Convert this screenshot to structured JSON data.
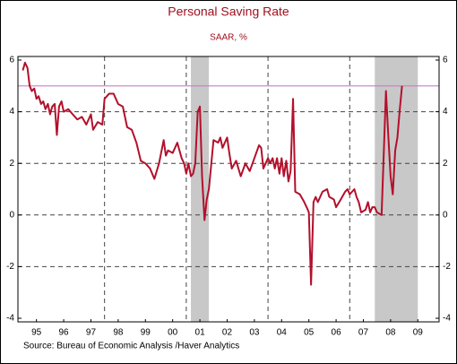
{
  "chart_data": {
    "type": "line",
    "title": "Personal Saving Rate",
    "subtitle": "SAAR, %",
    "source": "Source:  Bureau of Economic Analysis /Haver Analytics",
    "xlim": [
      1994.82,
      2010.28
    ],
    "xticks": [
      {
        "value": 1995.5,
        "label": "95"
      },
      {
        "value": 1996.5,
        "label": "96"
      },
      {
        "value": 1997.5,
        "label": "97"
      },
      {
        "value": 1998.5,
        "label": "98"
      },
      {
        "value": 1999.5,
        "label": "99"
      },
      {
        "value": 2000.5,
        "label": "00"
      },
      {
        "value": 2001.5,
        "label": "01"
      },
      {
        "value": 2002.5,
        "label": "02"
      },
      {
        "value": 2003.5,
        "label": "03"
      },
      {
        "value": 2004.5,
        "label": "04"
      },
      {
        "value": 2005.5,
        "label": "05"
      },
      {
        "value": 2006.5,
        "label": "06"
      },
      {
        "value": 2007.5,
        "label": "07"
      },
      {
        "value": 2008.5,
        "label": "08"
      },
      {
        "value": 2009.5,
        "label": "09"
      }
    ],
    "xgrid": [
      1998,
      2001,
      2004,
      2007
    ],
    "ylim": [
      -4,
      6
    ],
    "yticks": [
      -4,
      -2,
      0,
      2,
      4,
      6
    ],
    "y2lim": [
      -4,
      6
    ],
    "y2ticks": [
      -4,
      -2,
      0,
      2,
      4,
      6
    ],
    "grid": true,
    "reference_line": {
      "value": 5,
      "color": "#c77fc7"
    },
    "shaded": {
      "color": "#c8c8c8",
      "ranges": [
        [
          2001.17,
          2001.83
        ],
        [
          2007.92,
          2009.5
        ]
      ]
    },
    "series": [
      {
        "name": "Personal Saving Rate",
        "color": "#b3102c",
        "x": [
          1995.0,
          1995.08,
          1995.17,
          1995.25,
          1995.33,
          1995.42,
          1995.5,
          1995.58,
          1995.67,
          1995.75,
          1995.83,
          1995.92,
          1996.0,
          1996.08,
          1996.17,
          1996.25,
          1996.33,
          1996.42,
          1996.5,
          1996.67,
          1996.83,
          1997.0,
          1997.17,
          1997.33,
          1997.5,
          1997.58,
          1997.75,
          1997.92,
          1998.0,
          1998.17,
          1998.33,
          1998.5,
          1998.67,
          1998.83,
          1999.0,
          1999.17,
          1999.33,
          1999.5,
          1999.67,
          1999.83,
          2000.0,
          2000.17,
          2000.25,
          2000.33,
          2000.5,
          2000.67,
          2000.83,
          2000.92,
          2001.0,
          2001.08,
          2001.17,
          2001.25,
          2001.33,
          2001.42,
          2001.5,
          2001.58,
          2001.67,
          2001.75,
          2001.83,
          2001.92,
          2002.0,
          2002.17,
          2002.25,
          2002.33,
          2002.5,
          2002.58,
          2002.67,
          2002.83,
          2003.0,
          2003.17,
          2003.33,
          2003.5,
          2003.67,
          2003.75,
          2003.83,
          2004.0,
          2004.08,
          2004.17,
          2004.25,
          2004.33,
          2004.42,
          2004.5,
          2004.58,
          2004.67,
          2004.75,
          2004.83,
          2004.92,
          2005.0,
          2005.17,
          2005.33,
          2005.42,
          2005.5,
          2005.58,
          2005.67,
          2005.75,
          2005.83,
          2006.0,
          2006.17,
          2006.25,
          2006.42,
          2006.5,
          2006.67,
          2006.83,
          2006.92,
          2007.0,
          2007.17,
          2007.25,
          2007.33,
          2007.42,
          2007.58,
          2007.67,
          2007.75,
          2007.83,
          2007.92,
          2008.0,
          2008.17,
          2008.33,
          2008.42,
          2008.5,
          2008.58,
          2008.67,
          2008.75,
          2008.83,
          2008.92
        ],
        "values": [
          5.6,
          5.9,
          5.7,
          5.0,
          4.8,
          4.9,
          4.5,
          4.6,
          4.3,
          4.4,
          4.1,
          4.3,
          3.9,
          4.2,
          4.3,
          3.1,
          4.2,
          4.4,
          4.0,
          4.1,
          3.9,
          3.7,
          3.8,
          3.5,
          3.9,
          3.3,
          3.6,
          3.5,
          4.5,
          4.7,
          4.7,
          4.3,
          4.2,
          3.4,
          3.3,
          2.8,
          2.1,
          2.0,
          1.8,
          1.4,
          2.0,
          2.9,
          2.3,
          2.5,
          2.4,
          2.8,
          2.2,
          2.0,
          1.6,
          2.0,
          1.5,
          1.6,
          2.0,
          4.0,
          4.2,
          1.5,
          -0.2,
          0.6,
          1.0,
          2.0,
          2.9,
          2.8,
          3.0,
          2.6,
          3.0,
          2.4,
          1.8,
          2.1,
          1.5,
          2.0,
          1.7,
          2.2,
          2.7,
          2.6,
          1.8,
          2.2,
          2.0,
          2.2,
          1.8,
          2.2,
          1.6,
          2.2,
          1.5,
          2.1,
          1.3,
          1.7,
          4.5,
          0.9,
          0.8,
          0.5,
          0.3,
          0.1,
          -2.7,
          0.5,
          0.7,
          0.5,
          0.9,
          1.0,
          0.7,
          0.6,
          0.3,
          0.6,
          0.9,
          1.0,
          0.8,
          1.0,
          0.7,
          0.5,
          0.1,
          0.2,
          0.5,
          0.1,
          0.3,
          0.3,
          0.1,
          0.0,
          4.8,
          3.0,
          1.5,
          0.8,
          2.5,
          3.0,
          4.0,
          5.0
        ]
      }
    ]
  }
}
